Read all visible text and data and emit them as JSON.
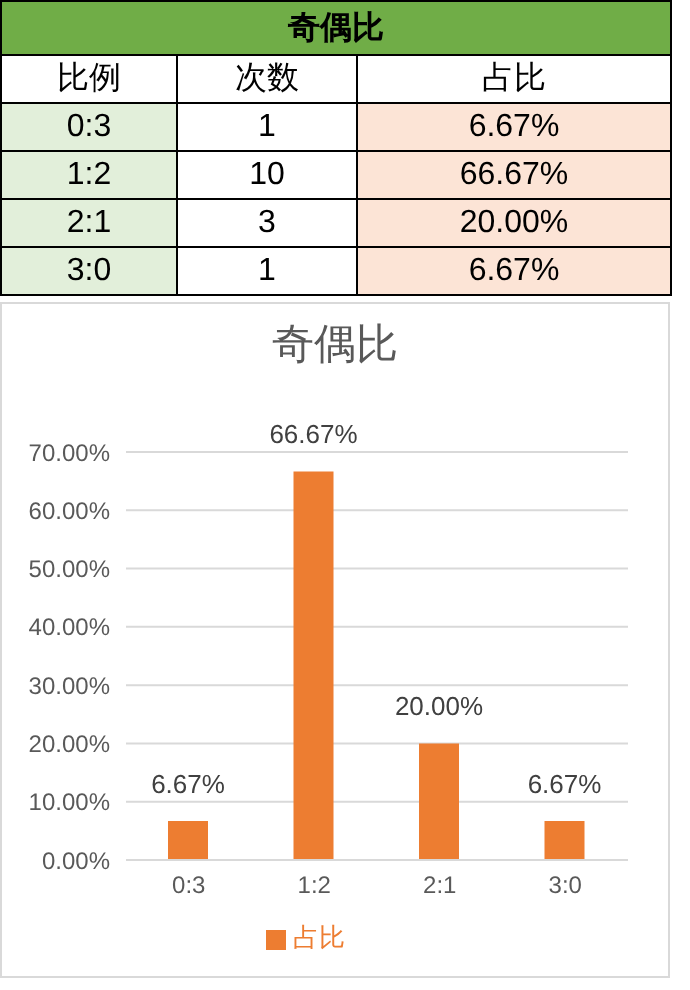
{
  "chart_data": [
    {
      "type": "other",
      "title": "奇偶比",
      "xlabel": "比例",
      "categories": [
        "0:3",
        "1:2",
        "2:1",
        "3:0"
      ],
      "series": [
        {
          "name": "次数",
          "values": [
            1,
            10,
            3,
            1
          ]
        },
        {
          "name": "占比",
          "values": [
            6.67,
            66.67,
            20,
            6.67
          ],
          "value_labels": [
            "6.67%",
            "66.67%",
            "20.00%",
            "6.67%"
          ]
        }
      ],
      "data_labels": true
    },
    {
      "type": "bar",
      "title": "奇偶比",
      "categories": [
        "0:3",
        "1:2",
        "2:1",
        "3:0"
      ],
      "series": [
        {
          "name": "占比",
          "color": "#ed7d31",
          "values": [
            6.67,
            66.67,
            20,
            6.67
          ],
          "value_labels": [
            "6.67%",
            "66.67%",
            "20.00%",
            "6.67%"
          ]
        }
      ],
      "ylim": [
        0,
        70
      ],
      "yticks": [
        {
          "value": 0,
          "label": "0.00%"
        },
        {
          "value": 10,
          "label": "10.00%"
        },
        {
          "value": 20,
          "label": "20.00%"
        },
        {
          "value": 30,
          "label": "30.00%"
        },
        {
          "value": 40,
          "label": "40.00%"
        },
        {
          "value": 50,
          "label": "50.00%"
        },
        {
          "value": 60,
          "label": "60.00%"
        },
        {
          "value": 70,
          "label": "70.00%"
        }
      ],
      "grid": "y",
      "legend": "bottom"
    }
  ]
}
